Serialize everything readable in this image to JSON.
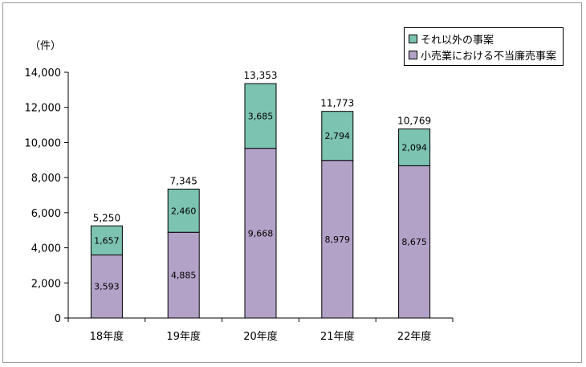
{
  "chart_data": {
    "type": "bar",
    "stacked": true,
    "unit_label": "（件）",
    "categories": [
      "18年度",
      "19年度",
      "20年度",
      "21年度",
      "22年度"
    ],
    "series": [
      {
        "name": "小売業における不当廉売事案",
        "values": [
          3593,
          4885,
          9668,
          8979,
          8675
        ],
        "color": "#b3a2c7"
      },
      {
        "name": "それ以外の事案",
        "values": [
          1657,
          2460,
          3685,
          2794,
          2094
        ],
        "color": "#7dc3b2"
      }
    ],
    "totals": [
      5250,
      7345,
      13353,
      11773,
      10769
    ],
    "ylim": [
      0,
      14000
    ],
    "yticks": [
      0,
      2000,
      4000,
      6000,
      8000,
      10000,
      12000,
      14000
    ],
    "grid": false,
    "legend": "top-right"
  }
}
